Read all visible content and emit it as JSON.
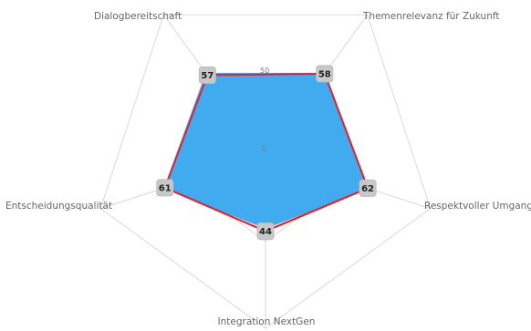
{
  "chart_data": {
    "type": "radar",
    "categories": [
      "Themenrelevanz für Zukunft",
      "Respektvoller Umgang",
      "Integration NextGen",
      "Entscheidungsqualität",
      "Dialogbereitschaft"
    ],
    "series": [
      {
        "values": [
          58,
          62,
          44,
          61,
          57
        ],
        "color": "#e5232d",
        "style": "outline"
      },
      {
        "values": [
          58,
          62,
          42,
          61,
          58
        ],
        "color": "#3da9f0",
        "style": "filled"
      }
    ],
    "data_labels": [
      "58",
      "62",
      "44",
      "61",
      "57"
    ],
    "ticks": [
      "0",
      "50"
    ],
    "rmin": 0,
    "rmax": 100,
    "grid": true
  }
}
